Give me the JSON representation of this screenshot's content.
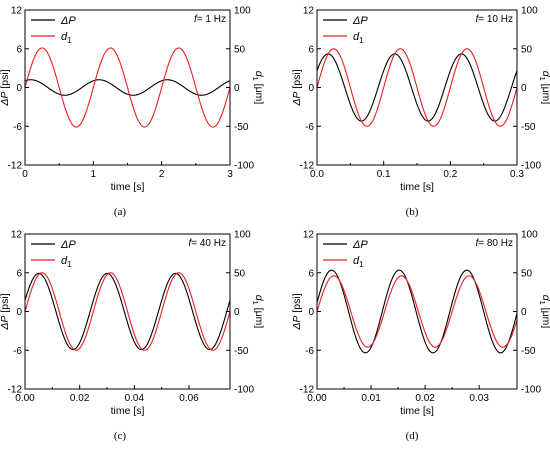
{
  "figure": {
    "panel_labels": [
      "(a)",
      "(b)",
      "(c)",
      "(d)"
    ]
  },
  "colors": {
    "pressure": "#000000",
    "displacement": "#e8201e"
  },
  "chart_data": [
    {
      "type": "line",
      "panel": "(a)",
      "annotation": "f= 1 Hz",
      "xlabel": "time [s]",
      "ylabel_left": "ΔP [psi]",
      "ylabel_right": "d1 [μm]",
      "xlim": [
        0,
        3
      ],
      "ylim_left": [
        -12,
        12
      ],
      "ylim_right": [
        -100,
        100
      ],
      "x_ticks": [
        "0",
        "1",
        "2",
        "3"
      ],
      "y_left_ticks": [
        "-12",
        "-6",
        "0",
        "6",
        "12"
      ],
      "y_right_ticks": [
        "-100",
        "-50",
        "0",
        "50",
        "100"
      ],
      "legend": {
        "position": "top-left",
        "entries": [
          "ΔP",
          "d1"
        ]
      },
      "series": [
        {
          "name": "ΔP",
          "axis": "left",
          "frequency_hz": 1,
          "amplitude": 1.2,
          "phase_deg": 60
        },
        {
          "name": "d1",
          "axis": "right",
          "frequency_hz": 1,
          "amplitude": 51,
          "phase_deg": 0
        }
      ]
    },
    {
      "type": "line",
      "panel": "(b)",
      "annotation": "f= 10 Hz",
      "xlabel": "time [s]",
      "ylabel_left": "ΔP [psi]",
      "ylabel_right": "d1 [μm]",
      "xlim": [
        0,
        0.3
      ],
      "ylim_left": [
        -12,
        12
      ],
      "ylim_right": [
        -100,
        100
      ],
      "x_ticks": [
        "0.0",
        "0.1",
        "0.2",
        "0.3"
      ],
      "y_left_ticks": [
        "-12",
        "-6",
        "0",
        "6",
        "12"
      ],
      "y_right_ticks": [
        "-100",
        "-50",
        "0",
        "50",
        "100"
      ],
      "legend": {
        "position": "top-left",
        "entries": [
          "ΔP",
          "d1"
        ]
      },
      "series": [
        {
          "name": "ΔP",
          "axis": "left",
          "frequency_hz": 10,
          "amplitude": 5.2,
          "phase_deg": 30
        },
        {
          "name": "d1",
          "axis": "right",
          "frequency_hz": 10,
          "amplitude": 50,
          "phase_deg": 0
        }
      ]
    },
    {
      "type": "line",
      "panel": "(c)",
      "annotation": "f= 40 Hz",
      "xlabel": "time [s]",
      "ylabel_left": "ΔP [psi]",
      "ylabel_right": "d1 [μm]",
      "xlim": [
        0,
        0.075
      ],
      "ylim_left": [
        -12,
        12
      ],
      "ylim_right": [
        -100,
        100
      ],
      "x_ticks": [
        "0.00",
        "0.02",
        "0.04",
        "0.06"
      ],
      "y_left_ticks": [
        "-12",
        "-6",
        "0",
        "6",
        "12"
      ],
      "y_right_ticks": [
        "-100",
        "-50",
        "0",
        "50",
        "100"
      ],
      "legend": {
        "position": "top-left",
        "entries": [
          "ΔP",
          "d1"
        ]
      },
      "series": [
        {
          "name": "ΔP",
          "axis": "left",
          "frequency_hz": 40,
          "amplitude": 5.9,
          "phase_deg": 17
        },
        {
          "name": "d1",
          "axis": "right",
          "frequency_hz": 40,
          "amplitude": 50,
          "phase_deg": 0
        }
      ]
    },
    {
      "type": "line",
      "panel": "(d)",
      "annotation": "f= 80 Hz",
      "xlabel": "time [s]",
      "ylabel_left": "ΔP [psi]",
      "ylabel_right": "d1 [μm]",
      "xlim": [
        0,
        0.037
      ],
      "ylim_left": [
        -12,
        12
      ],
      "ylim_right": [
        -100,
        100
      ],
      "x_ticks": [
        "0.00",
        "0.01",
        "0.02",
        "0.03"
      ],
      "y_left_ticks": [
        "-12",
        "-6",
        "0",
        "6",
        "12"
      ],
      "y_right_ticks": [
        "-100",
        "-50",
        "0",
        "50",
        "100"
      ],
      "legend": {
        "position": "top-left",
        "entries": [
          "ΔP",
          "d1"
        ]
      },
      "series": [
        {
          "name": "ΔP",
          "axis": "left",
          "frequency_hz": 80,
          "amplitude": 6.4,
          "phase_deg": 12
        },
        {
          "name": "d1",
          "axis": "right",
          "frequency_hz": 80,
          "amplitude": 46,
          "phase_deg": 0
        }
      ]
    }
  ]
}
